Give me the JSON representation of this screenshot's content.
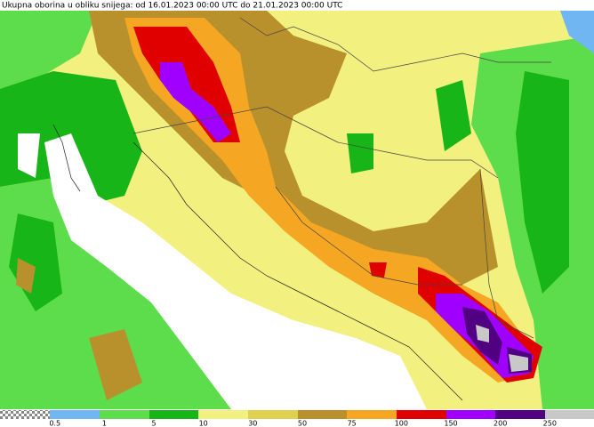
{
  "header": {
    "title": "Ukupna oborina u obliku snijega: od 16.01.2023 00:00 UTC do 21.01.2023 00:00 UTC"
  },
  "legend": {
    "labels": [
      0.5,
      1,
      5,
      10,
      30,
      50,
      75,
      100,
      150,
      200,
      250
    ]
  }
}
